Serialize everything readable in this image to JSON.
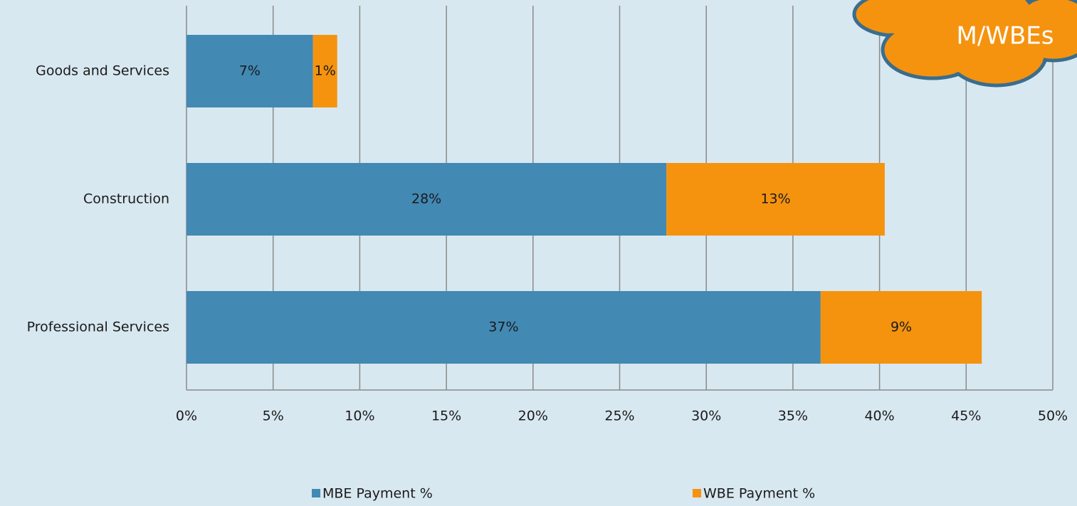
{
  "chart_data": {
    "type": "stacked-bar-horizontal",
    "annotation": "M/WBEs",
    "categories": [
      "Goods and Services",
      "Construction",
      "Professional Services"
    ],
    "series": [
      {
        "name": "MBE Payment %",
        "color": "#4289b4",
        "values": [
          7.3,
          27.7,
          36.6
        ],
        "value_labels": [
          "7%",
          "28%",
          "37%"
        ]
      },
      {
        "name": "WBE Payment %",
        "color": "#f5930f",
        "values": [
          1.4,
          12.6,
          9.3
        ],
        "value_labels": [
          "1%",
          "13%",
          "9%"
        ]
      }
    ],
    "xlim": [
      0,
      50
    ],
    "xticks": [
      {
        "value": 0,
        "label": "0%"
      },
      {
        "value": 5,
        "label": "5%"
      },
      {
        "value": 10,
        "label": "10%"
      },
      {
        "value": 15,
        "label": "15%"
      },
      {
        "value": 20,
        "label": "20%"
      },
      {
        "value": 25,
        "label": "25%"
      },
      {
        "value": 30,
        "label": "30%"
      },
      {
        "value": 35,
        "label": "35%"
      },
      {
        "value": 40,
        "label": "40%"
      },
      {
        "value": 45,
        "label": "45%"
      },
      {
        "value": 50,
        "label": "50%"
      }
    ],
    "grid": true
  }
}
